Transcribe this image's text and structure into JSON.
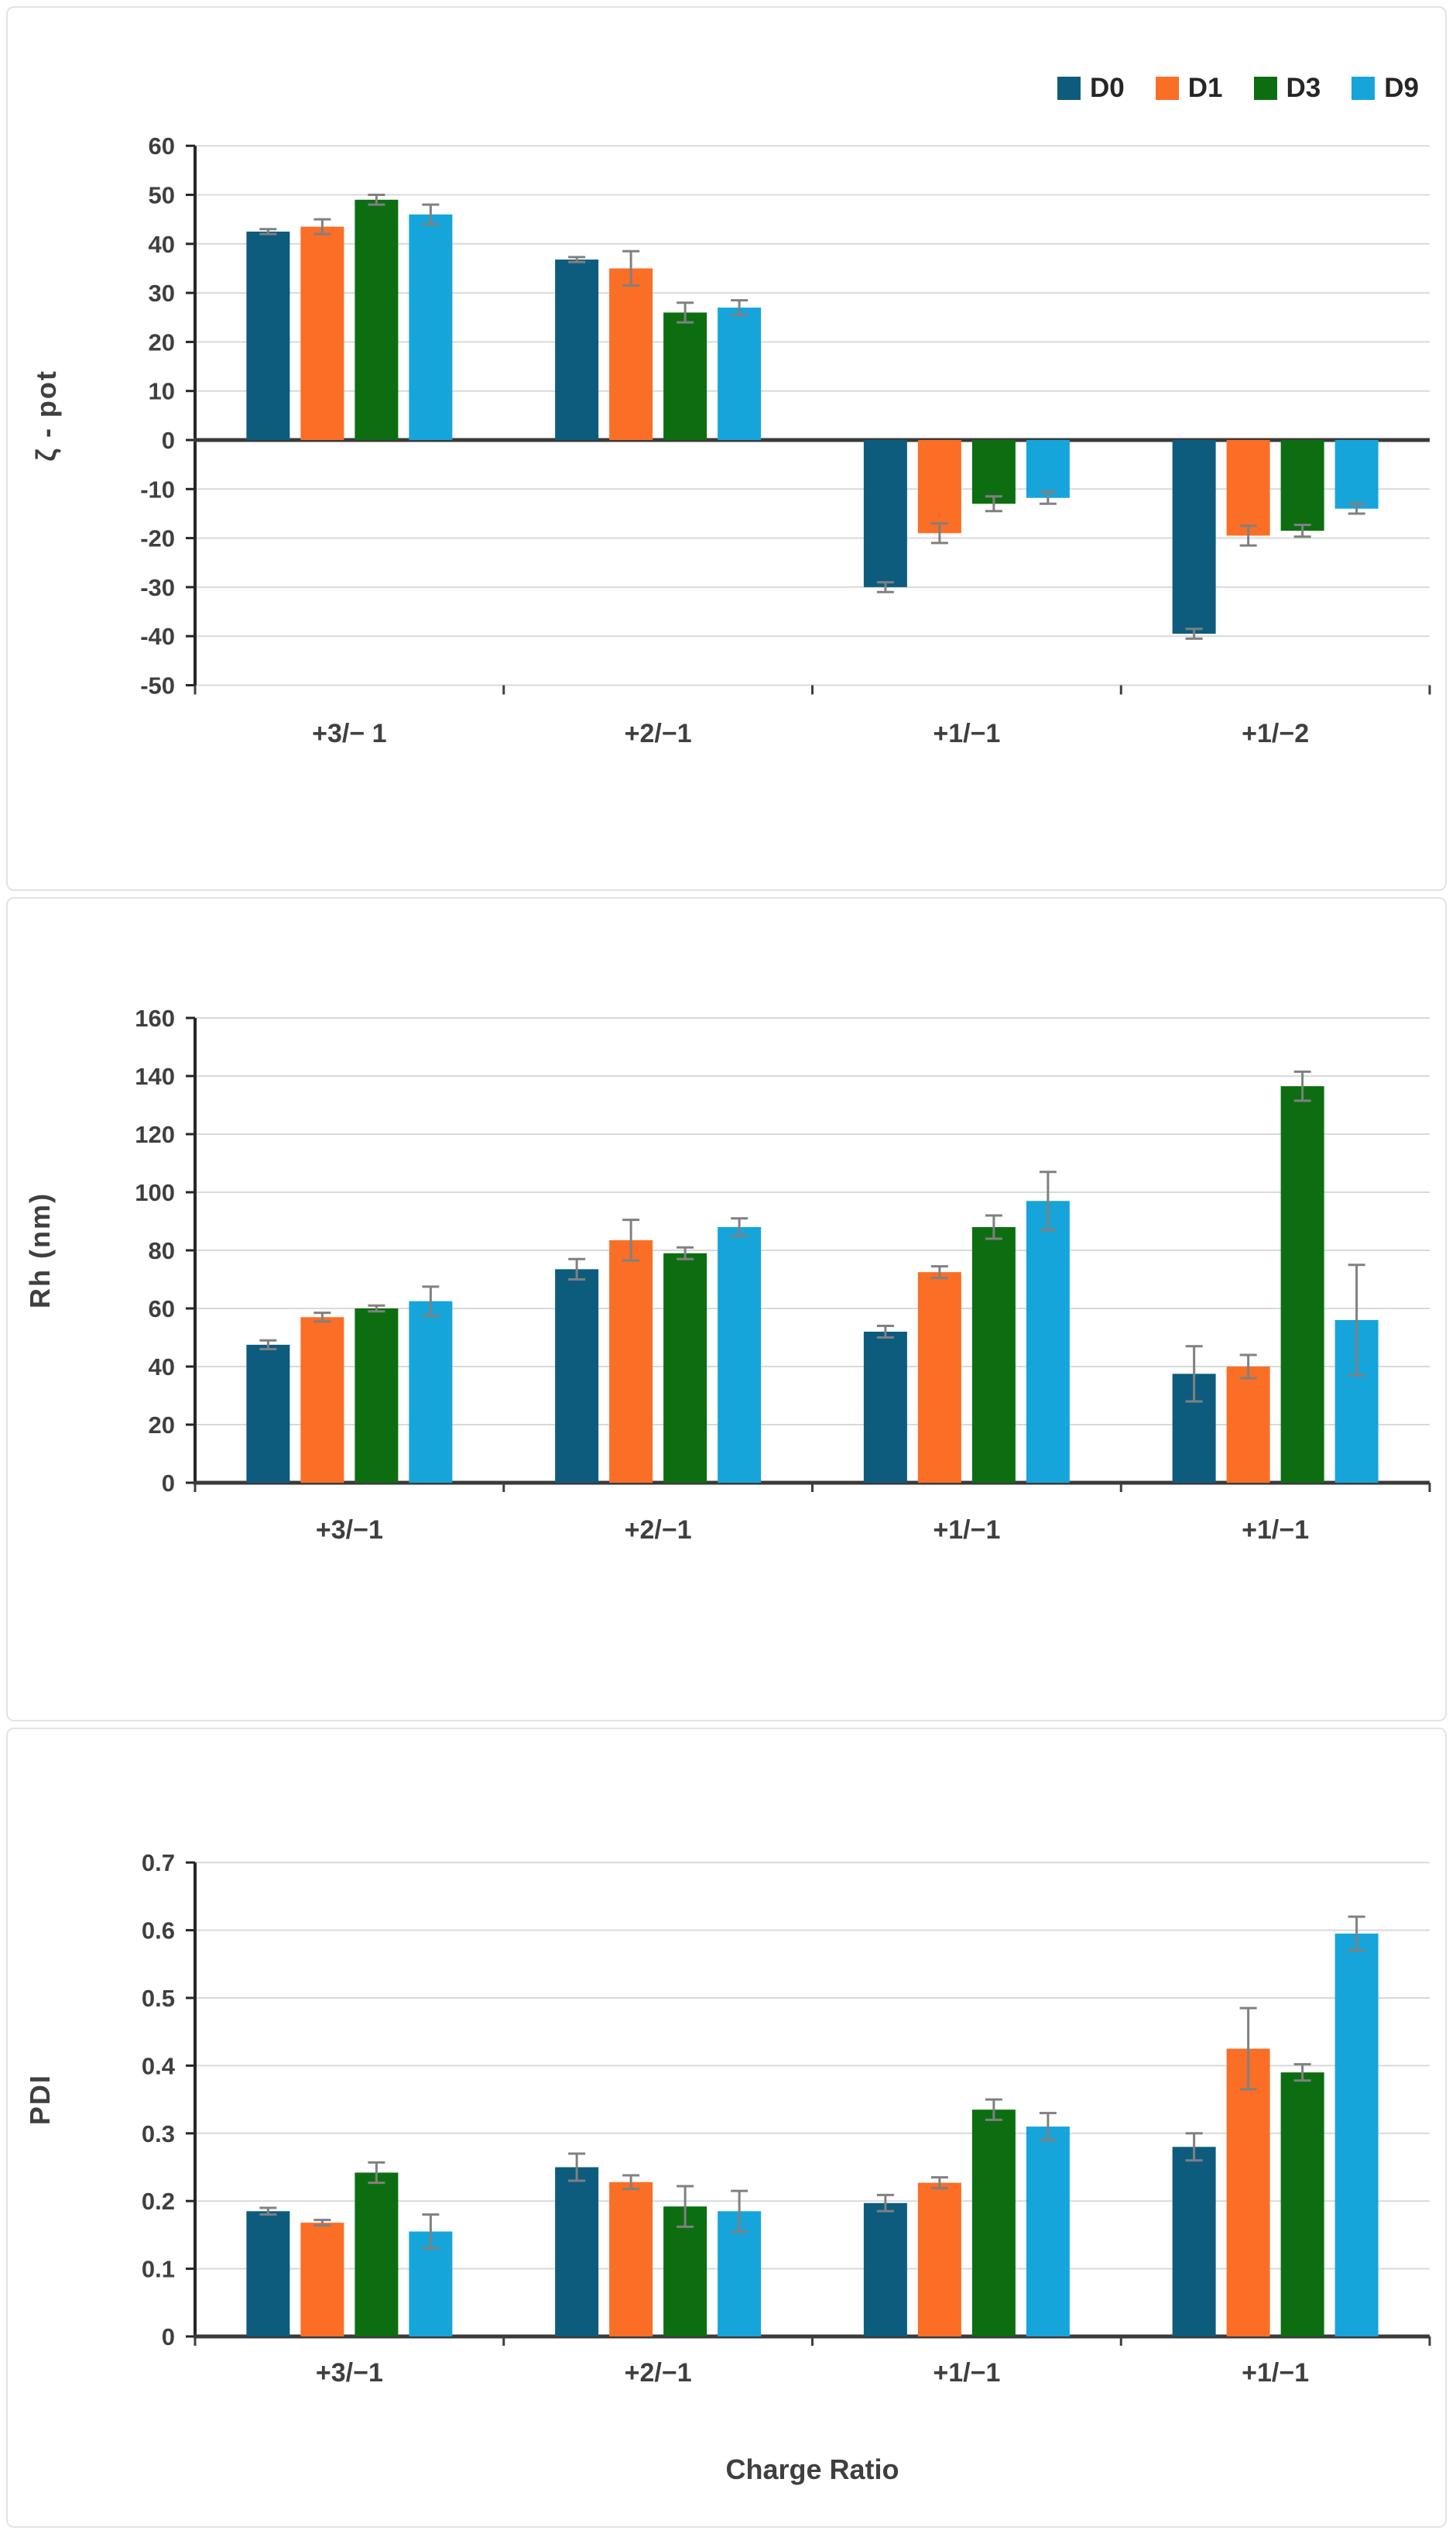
{
  "figure": {
    "legend": [
      {
        "label": "D0",
        "color": "#0d5c7d"
      },
      {
        "label": "D1",
        "color": "#fb6e26"
      },
      {
        "label": "D3",
        "color": "#0c6e10"
      },
      {
        "label": "D9",
        "color": "#16a5da"
      }
    ],
    "grid_color": "#d9d9d9",
    "axis_color": "#262626",
    "error_bar_color": "#808080",
    "text_color": "#3f3f3f"
  },
  "chart_data": [
    {
      "id": "zeta-pot",
      "type": "bar",
      "title": "",
      "ylabel": "ζ - pot",
      "xlabel": "",
      "categories": [
        "+3/− 1",
        "+2/−1",
        "+1/−1",
        "+1/−2"
      ],
      "series": [
        {
          "name": "D0",
          "color": "#0d5c7d",
          "values": [
            42.5,
            36.8,
            -30,
            -39.5
          ],
          "errors": [
            0.5,
            0.5,
            1,
            1
          ]
        },
        {
          "name": "D1",
          "color": "#fb6e26",
          "values": [
            43.5,
            35,
            -19,
            -19.5
          ],
          "errors": [
            1.5,
            3.5,
            2,
            2
          ]
        },
        {
          "name": "D3",
          "color": "#0c6e10",
          "values": [
            49,
            26,
            -13,
            -18.5
          ],
          "errors": [
            1,
            2,
            1.5,
            1.2
          ]
        },
        {
          "name": "D9",
          "color": "#16a5da",
          "values": [
            46,
            27,
            -11.8,
            -14
          ],
          "errors": [
            2,
            1.5,
            1.2,
            1
          ]
        }
      ],
      "ylim": [
        -50,
        60
      ],
      "yticks": [
        60,
        50,
        40,
        30,
        20,
        10,
        0,
        -10,
        -20,
        -30,
        -40,
        -50
      ],
      "ytick_labels": [
        "60",
        "50",
        "40",
        "30",
        "20",
        "10",
        "0",
        "-10",
        "-20",
        "-30",
        "-40",
        "-50"
      ],
      "grid": true,
      "legend_position": "top-right"
    },
    {
      "id": "rh",
      "type": "bar",
      "title": "",
      "ylabel": "Rh (nm)",
      "xlabel": "",
      "categories": [
        "+3/−1",
        "+2/−1",
        "+1/−1",
        "+1/−1"
      ],
      "series": [
        {
          "name": "D0",
          "color": "#0d5c7d",
          "values": [
            47.5,
            73.5,
            52,
            37.5
          ],
          "errors": [
            1.5,
            3.5,
            2,
            9.5
          ]
        },
        {
          "name": "D1",
          "color": "#fb6e26",
          "values": [
            57,
            83.5,
            72.5,
            40
          ],
          "errors": [
            1.5,
            7,
            2,
            4
          ]
        },
        {
          "name": "D3",
          "color": "#0c6e10",
          "values": [
            60,
            79,
            88,
            136.5
          ],
          "errors": [
            1,
            2,
            4,
            5
          ]
        },
        {
          "name": "D9",
          "color": "#16a5da",
          "values": [
            62.5,
            88,
            97,
            56
          ],
          "errors": [
            5,
            3,
            10,
            19
          ]
        }
      ],
      "ylim": [
        0,
        160
      ],
      "yticks": [
        160,
        140,
        120,
        100,
        80,
        60,
        40,
        20,
        0
      ],
      "ytick_labels": [
        "160",
        "140",
        "120",
        "100",
        "80",
        "60",
        "40",
        "20",
        "0"
      ],
      "grid": true,
      "legend_position": "none"
    },
    {
      "id": "pdi",
      "type": "bar",
      "title": "",
      "ylabel": "PDI",
      "xlabel": "Charge Ratio",
      "categories": [
        "+3/−1",
        "+2/−1",
        "+1/−1",
        "+1/−1"
      ],
      "series": [
        {
          "name": "D0",
          "color": "#0d5c7d",
          "values": [
            0.185,
            0.25,
            0.197,
            0.28
          ],
          "errors": [
            0.005,
            0.02,
            0.012,
            0.02
          ]
        },
        {
          "name": "D1",
          "color": "#fb6e26",
          "values": [
            0.168,
            0.228,
            0.227,
            0.425
          ],
          "errors": [
            0.004,
            0.01,
            0.008,
            0.06
          ]
        },
        {
          "name": "D3",
          "color": "#0c6e10",
          "values": [
            0.242,
            0.192,
            0.335,
            0.39
          ],
          "errors": [
            0.015,
            0.03,
            0.015,
            0.012
          ]
        },
        {
          "name": "D9",
          "color": "#16a5da",
          "values": [
            0.155,
            0.185,
            0.31,
            0.595
          ],
          "errors": [
            0.025,
            0.03,
            0.02,
            0.025
          ]
        }
      ],
      "ylim": [
        0,
        0.7
      ],
      "yticks": [
        0.7,
        0.6,
        0.5,
        0.4,
        0.3,
        0.2,
        0.1,
        0
      ],
      "ytick_labels": [
        "0.7",
        "0.6",
        "0.5",
        "0.4",
        "0.3",
        "0.2",
        "0.1",
        "0"
      ],
      "grid": true,
      "legend_position": "none"
    }
  ]
}
